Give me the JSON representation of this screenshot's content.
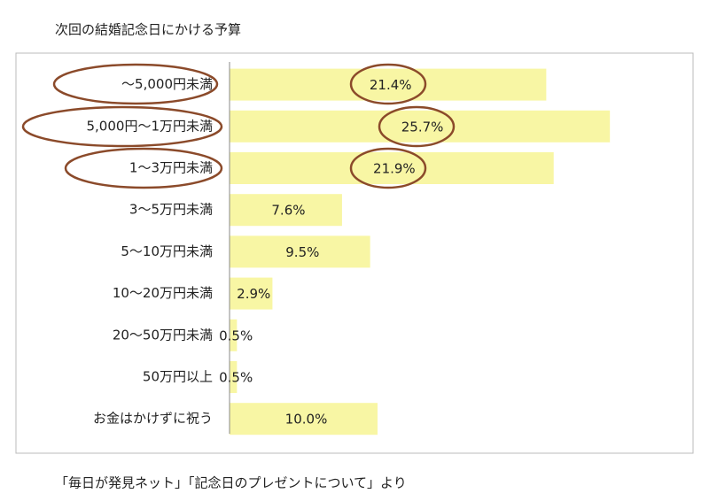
{
  "chart_data": {
    "type": "bar",
    "orientation": "horizontal",
    "title": "次回の結婚記念日にかける予算",
    "categories": [
      "～5,000円未満",
      "5,000円～1万円未満",
      "1～3万円未満",
      "3～5万円未満",
      "5～10万円未満",
      "10～20万円未満",
      "20～50万円未満",
      "50万円以上",
      "お金はかけずに祝う"
    ],
    "values": [
      21.4,
      25.7,
      21.9,
      7.6,
      9.5,
      2.9,
      0.5,
      0.5,
      10.0
    ],
    "value_labels": [
      "21.4%",
      "25.7%",
      "21.9%",
      "7.6%",
      "9.5%",
      "2.9%",
      "0.5%",
      "0.5%",
      "10.0%"
    ],
    "color": "#f8f6a4",
    "source": "「毎日が発見ネット」「記念日のプレゼントについて」より"
  }
}
